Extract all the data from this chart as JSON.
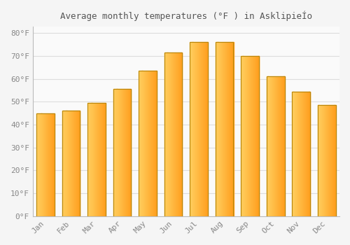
{
  "title": "Average monthly temperatures (°F ) in AsklipieÍo",
  "months": [
    "Jan",
    "Feb",
    "Mar",
    "Apr",
    "May",
    "Jun",
    "Jul",
    "Aug",
    "Sep",
    "Oct",
    "Nov",
    "Dec"
  ],
  "values": [
    45,
    46,
    49.5,
    55.5,
    63.5,
    71.5,
    76,
    76,
    70,
    61,
    54.5,
    48.5
  ],
  "bar_color_left": "#FFD060",
  "bar_color_right": "#FFA020",
  "bar_edge_color": "#B8860B",
  "background_color": "#F5F5F5",
  "plot_bg_color": "#FAFAFA",
  "grid_color": "#DDDDDD",
  "yticks": [
    0,
    10,
    20,
    30,
    40,
    50,
    60,
    70,
    80
  ],
  "ylim": [
    0,
    83
  ],
  "tick_label_color": "#888888",
  "title_color": "#555555",
  "font_family": "monospace",
  "bar_width": 0.7
}
